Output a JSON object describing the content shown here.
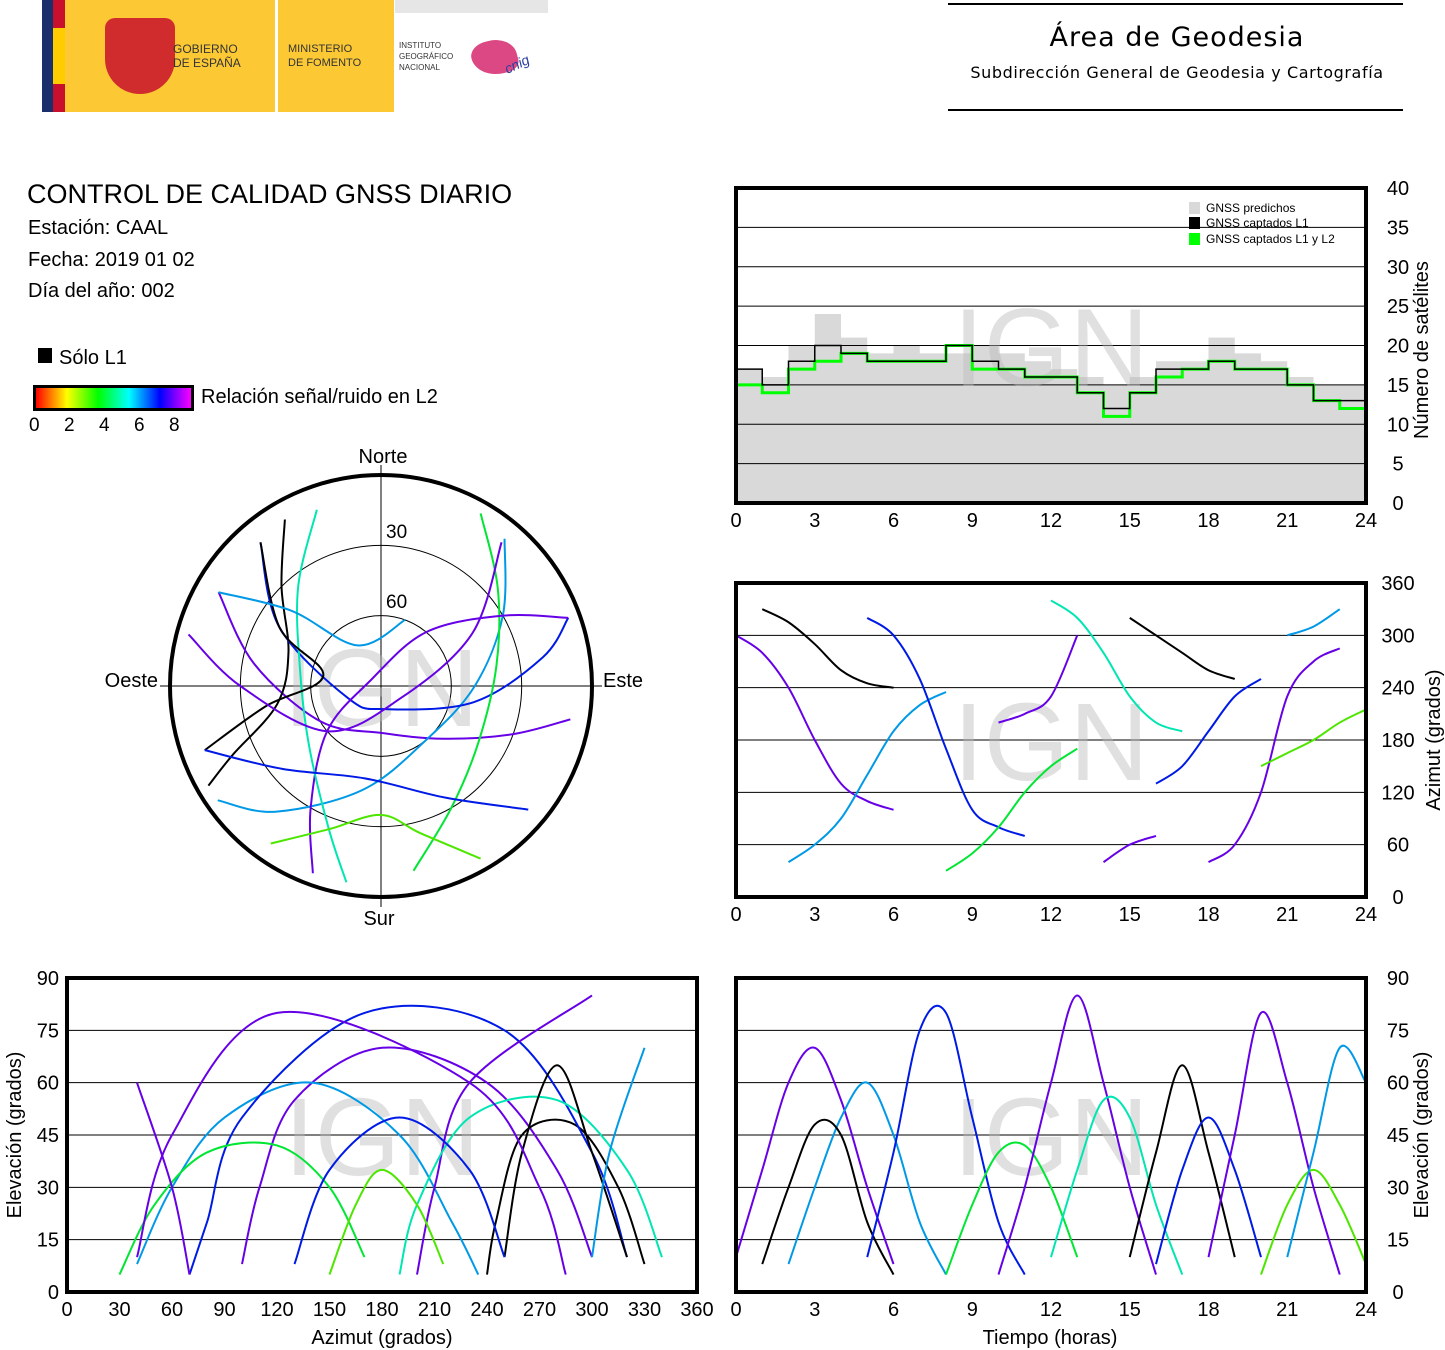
{
  "header": {
    "logo": {
      "gov_line1": "GOBIERNO",
      "gov_line2": "DE ESPAÑA",
      "min_line1": "MINISTERIO",
      "min_line2": "DE FOMENTO",
      "ign_line1": "INSTITUTO",
      "ign_line2": "GEOGRÁFICO",
      "ign_line3": "NACIONAL",
      "cnig": "cnig"
    },
    "area_title": "Área de Geodesia",
    "area_subtitle": "Subdirección General de Geodesia y Cartografía"
  },
  "report": {
    "title": "CONTROL DE CALIDAD GNSS DIARIO",
    "station": "Estación: CAAL",
    "date": "Fecha: 2019 01 02",
    "doy": "Día del año: 002"
  },
  "legend": {
    "l1_only": "Sólo L1",
    "l1_only_color": "#000000",
    "snr_label": "Relación señal/ruido en L2",
    "snr_ticks": [
      "0",
      "2",
      "4",
      "6",
      "8"
    ],
    "snr_range": [
      0,
      9
    ]
  },
  "watermark": "IGN",
  "chart_data": [
    {
      "id": "satellite-count",
      "type": "area",
      "xlim": [
        0,
        24
      ],
      "ylim": [
        0,
        40
      ],
      "xticks": [
        "0",
        "3",
        "6",
        "9",
        "12",
        "15",
        "18",
        "21",
        "24"
      ],
      "yticks": [
        "0",
        "5",
        "10",
        "15",
        "20",
        "25",
        "30",
        "35",
        "40"
      ],
      "ylabel": "Número de satélites",
      "grid": true,
      "legend_position": "top-right",
      "x": [
        0,
        1,
        2,
        3,
        4,
        5,
        6,
        7,
        8,
        9,
        10,
        11,
        12,
        13,
        14,
        15,
        16,
        17,
        18,
        19,
        20,
        21,
        22,
        23,
        24
      ],
      "series": [
        {
          "name": "GNSS predichos",
          "color": "#d9d9d9",
          "values": [
            17,
            16,
            20,
            24,
            21,
            19,
            20,
            19,
            19,
            20,
            19,
            18,
            17,
            16,
            15,
            16,
            18,
            18,
            21,
            19,
            18,
            16,
            15,
            15,
            17
          ]
        },
        {
          "name": "GNSS captados L1",
          "color": "#000000",
          "values": [
            17,
            15,
            18,
            20,
            19,
            18,
            18,
            18,
            20,
            18,
            17,
            16,
            16,
            14,
            12,
            14,
            17,
            17,
            18,
            17,
            17,
            15,
            13,
            13,
            16
          ]
        },
        {
          "name": "GNSS captados L1 y L2",
          "color": "#00ff00",
          "values": [
            15,
            14,
            17,
            18,
            19,
            18,
            18,
            18,
            20,
            17,
            17,
            16,
            16,
            14,
            11,
            14,
            16,
            17,
            18,
            17,
            17,
            15,
            13,
            12,
            15
          ]
        }
      ]
    },
    {
      "id": "skyplot",
      "type": "scatter",
      "directions": {
        "north": "Norte",
        "south": "Sur",
        "west": "Oeste",
        "east": "Este"
      },
      "elevation_rings": [
        "30",
        "60"
      ]
    },
    {
      "id": "azimuth-time",
      "type": "scatter",
      "xlim": [
        0,
        24
      ],
      "ylim": [
        0,
        360
      ],
      "xticks": [
        "0",
        "3",
        "6",
        "9",
        "12",
        "15",
        "18",
        "21",
        "24"
      ],
      "yticks": [
        "0",
        "60",
        "120",
        "180",
        "240",
        "300",
        "360"
      ],
      "ylabel": "Azimut (grados)",
      "grid": true
    },
    {
      "id": "elevation-azimuth",
      "type": "scatter",
      "xlim": [
        0,
        360
      ],
      "ylim": [
        0,
        90
      ],
      "xticks": [
        "0",
        "30",
        "60",
        "90",
        "120",
        "150",
        "180",
        "210",
        "240",
        "270",
        "300",
        "330",
        "360"
      ],
      "yticks": [
        "0",
        "15",
        "30",
        "45",
        "60",
        "75",
        "90"
      ],
      "xlabel": "Azimut (grados)",
      "ylabel": "Elevación (grados)",
      "grid": true
    },
    {
      "id": "elevation-time",
      "type": "scatter",
      "xlim": [
        0,
        24
      ],
      "ylim": [
        0,
        90
      ],
      "xticks": [
        "0",
        "3",
        "6",
        "9",
        "12",
        "15",
        "18",
        "21",
        "24"
      ],
      "yticks": [
        "0",
        "15",
        "30",
        "45",
        "60",
        "75",
        "90"
      ],
      "xlabel": "Tiempo (horas)",
      "ylabel": "Elevación (grados)",
      "grid": true
    }
  ],
  "tracks": [
    {
      "snr": 8,
      "points": [
        [
          0,
          300,
          10
        ],
        [
          1,
          280,
          35
        ],
        [
          2,
          240,
          60
        ],
        [
          3,
          180,
          70
        ],
        [
          4,
          130,
          55
        ],
        [
          5,
          110,
          30
        ],
        [
          6,
          100,
          8
        ]
      ]
    },
    {
      "snr": 6,
      "points": [
        [
          2,
          40,
          8
        ],
        [
          3,
          60,
          30
        ],
        [
          4,
          90,
          50
        ],
        [
          5,
          140,
          60
        ],
        [
          6,
          190,
          45
        ],
        [
          7,
          220,
          20
        ],
        [
          8,
          235,
          5
        ]
      ]
    },
    {
      "snr": null,
      "points": [
        [
          1,
          330,
          8
        ],
        [
          2,
          315,
          30
        ],
        [
          3,
          290,
          48
        ],
        [
          4,
          260,
          45
        ],
        [
          5,
          245,
          20
        ],
        [
          6,
          240,
          5
        ]
      ]
    },
    {
      "snr": 7,
      "points": [
        [
          5,
          320,
          10
        ],
        [
          6,
          300,
          40
        ],
        [
          7,
          250,
          75
        ],
        [
          8,
          170,
          80
        ],
        [
          9,
          100,
          50
        ],
        [
          10,
          80,
          20
        ],
        [
          11,
          70,
          5
        ]
      ]
    },
    {
      "snr": 4,
      "points": [
        [
          8,
          30,
          5
        ],
        [
          9,
          50,
          25
        ],
        [
          10,
          80,
          40
        ],
        [
          11,
          120,
          42
        ],
        [
          12,
          150,
          30
        ],
        [
          13,
          170,
          10
        ]
      ]
    },
    {
      "snr": 8,
      "points": [
        [
          10,
          200,
          5
        ],
        [
          11,
          210,
          30
        ],
        [
          12,
          230,
          60
        ],
        [
          13,
          300,
          85
        ],
        [
          14,
          40,
          60
        ],
        [
          15,
          60,
          30
        ],
        [
          16,
          70,
          5
        ]
      ]
    },
    {
      "snr": 5,
      "points": [
        [
          12,
          340,
          10
        ],
        [
          13,
          320,
          35
        ],
        [
          14,
          280,
          55
        ],
        [
          15,
          230,
          50
        ],
        [
          16,
          200,
          25
        ],
        [
          17,
          190,
          5
        ]
      ]
    },
    {
      "snr": null,
      "points": [
        [
          15,
          320,
          10
        ],
        [
          16,
          300,
          40
        ],
        [
          17,
          280,
          65
        ],
        [
          18,
          260,
          40
        ],
        [
          19,
          250,
          10
        ]
      ]
    },
    {
      "snr": 7,
      "points": [
        [
          16,
          130,
          8
        ],
        [
          17,
          150,
          35
        ],
        [
          18,
          190,
          50
        ],
        [
          19,
          230,
          35
        ],
        [
          20,
          250,
          10
        ]
      ]
    },
    {
      "snr": 8,
      "points": [
        [
          18,
          40,
          10
        ],
        [
          19,
          60,
          45
        ],
        [
          20,
          120,
          80
        ],
        [
          21,
          230,
          60
        ],
        [
          22,
          270,
          30
        ],
        [
          23,
          285,
          5
        ]
      ]
    },
    {
      "snr": 3,
      "points": [
        [
          20,
          150,
          5
        ],
        [
          21,
          165,
          25
        ],
        [
          22,
          180,
          35
        ],
        [
          23,
          200,
          25
        ],
        [
          24,
          215,
          8
        ]
      ]
    },
    {
      "snr": 6,
      "points": [
        [
          21,
          300,
          10
        ],
        [
          22,
          310,
          40
        ],
        [
          23,
          330,
          70
        ],
        [
          24,
          20,
          60
        ]
      ]
    }
  ]
}
